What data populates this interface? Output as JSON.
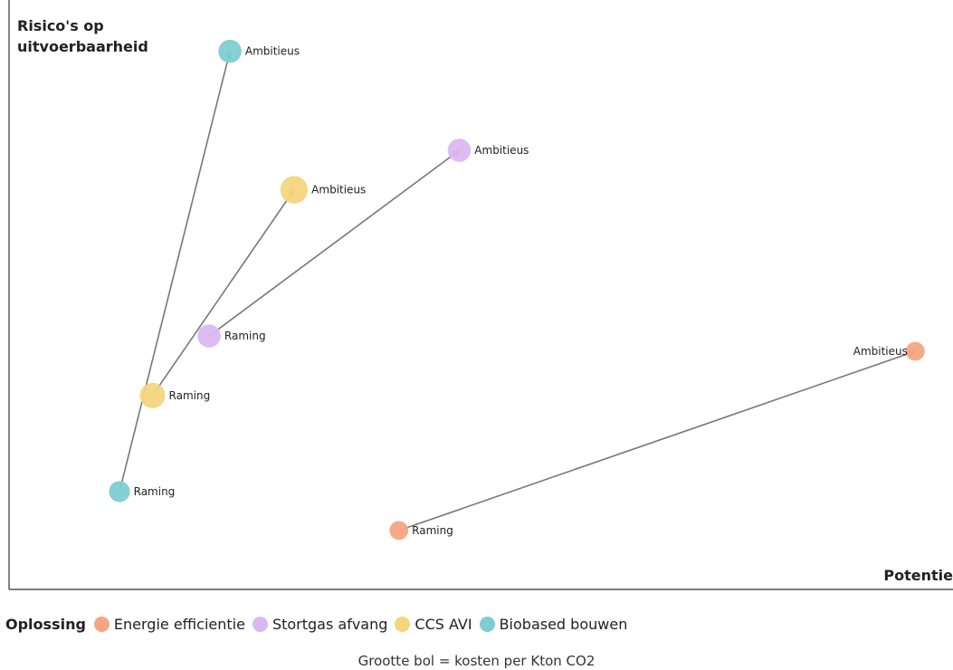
{
  "chart_data": {
    "type": "scatter",
    "xlabel": "Potentie",
    "ylabel": "Risico's op uitvoerbaarheid",
    "xlim": [
      0,
      100
    ],
    "ylim": [
      0,
      100
    ],
    "grid": false,
    "size_note": "Grootte bol = kosten per Kton CO2",
    "legend": {
      "title": "Oplossing",
      "position": "bottom-left",
      "entries": [
        {
          "name": "Energie efficientie",
          "color": "#f4a582"
        },
        {
          "name": "Stortgas afvang",
          "color": "#dcb8f0"
        },
        {
          "name": "CCS AVI",
          "color": "#f5d57e"
        },
        {
          "name": "Biobased bouwen",
          "color": "#7dcdd1"
        }
      ]
    },
    "series": [
      {
        "name": "Energie efficientie",
        "color": "#f4a582",
        "points": [
          {
            "label": "Raming",
            "x": 41.3,
            "y": 10.0,
            "size": 1
          },
          {
            "label": "Ambitieus",
            "x": 96.0,
            "y": 40.4,
            "size": 1
          }
        ]
      },
      {
        "name": "Stortgas afvang",
        "color": "#dcb8f0",
        "points": [
          {
            "label": "Raming",
            "x": 21.2,
            "y": 43.0,
            "size": 2
          },
          {
            "label": "Ambitieus",
            "x": 47.7,
            "y": 74.5,
            "size": 2
          }
        ]
      },
      {
        "name": "CCS AVI",
        "color": "#f5d57e",
        "points": [
          {
            "label": "Raming",
            "x": 15.2,
            "y": 32.9,
            "size": 2.5
          },
          {
            "label": "Ambitieus",
            "x": 30.2,
            "y": 67.8,
            "size": 3
          }
        ]
      },
      {
        "name": "Biobased bouwen",
        "color": "#7dcdd1",
        "points": [
          {
            "label": "Raming",
            "x": 11.7,
            "y": 16.6,
            "size": 1.5
          },
          {
            "label": "Ambitieus",
            "x": 23.4,
            "y": 91.3,
            "size": 2
          }
        ]
      }
    ]
  }
}
